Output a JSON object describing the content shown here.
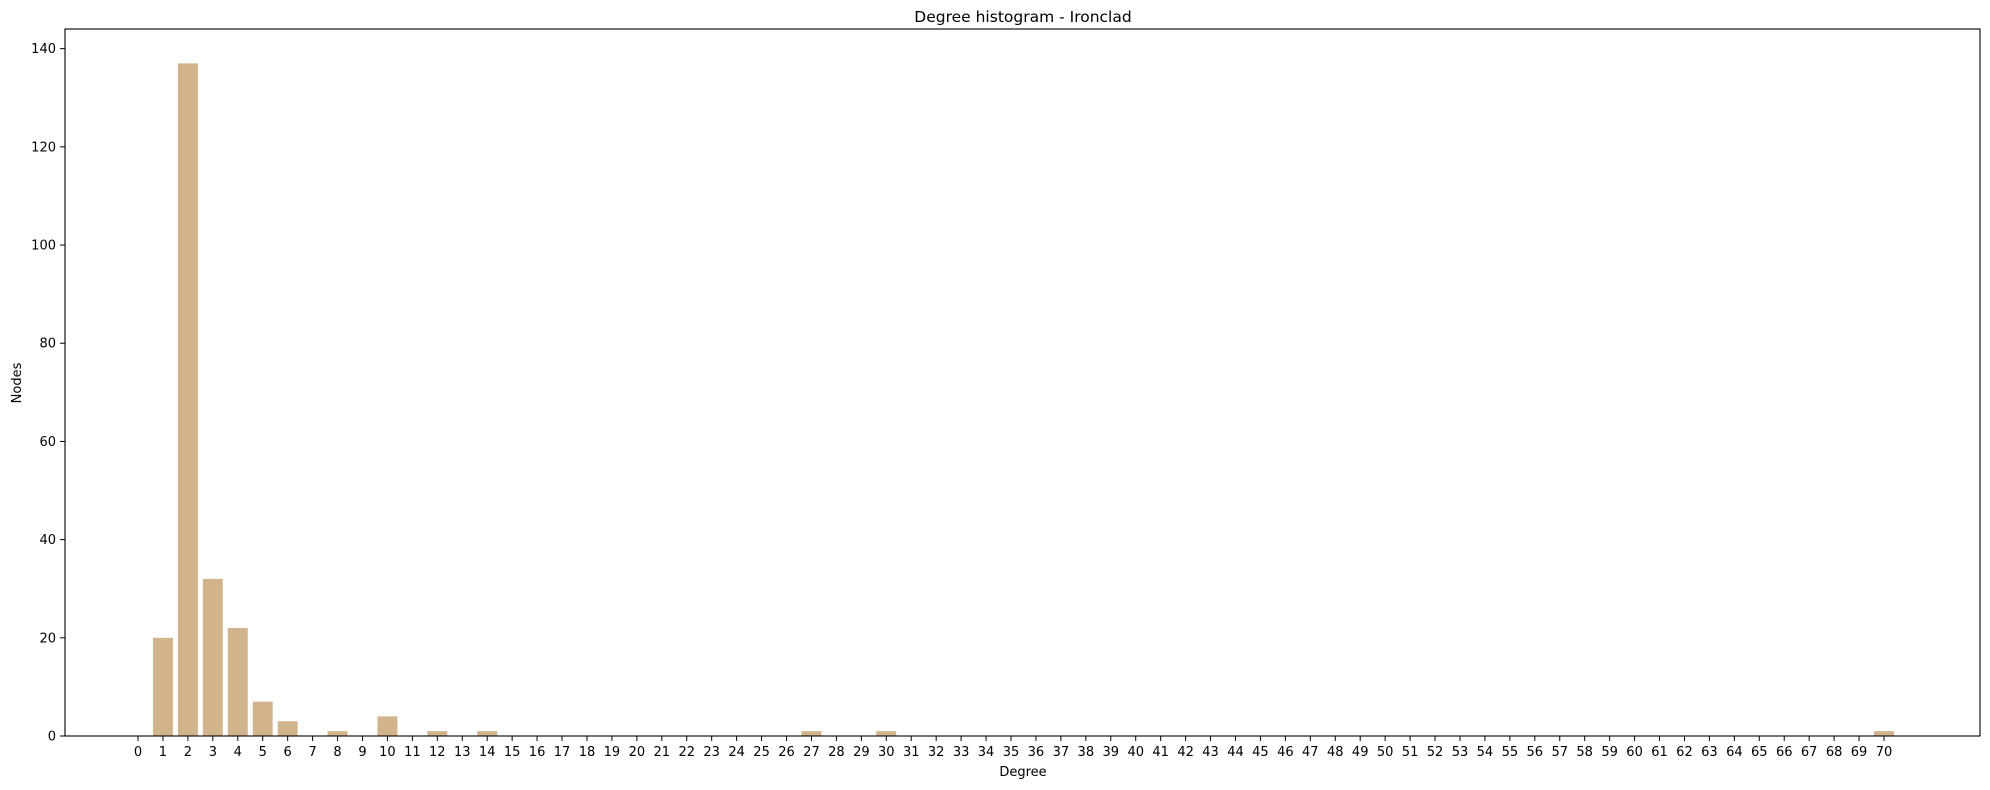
{
  "chart_data": {
    "type": "bar",
    "title": "Degree histogram - Ironclad",
    "xlabel": "Degree",
    "ylabel": "Nodes",
    "ylim": [
      0,
      144
    ],
    "y_ticks": [
      0,
      20,
      40,
      60,
      80,
      100,
      120,
      140
    ],
    "bar_color": "#d2b48c",
    "grid": false,
    "categories": [
      "0",
      "1",
      "2",
      "3",
      "4",
      "5",
      "6",
      "7",
      "8",
      "9",
      "10",
      "11",
      "12",
      "13",
      "14",
      "15",
      "16",
      "17",
      "18",
      "19",
      "20",
      "21",
      "22",
      "23",
      "24",
      "25",
      "26",
      "27",
      "28",
      "29",
      "30",
      "31",
      "32",
      "33",
      "34",
      "35",
      "36",
      "37",
      "38",
      "39",
      "40",
      "41",
      "42",
      "43",
      "44",
      "45",
      "46",
      "47",
      "48",
      "49",
      "50",
      "51",
      "52",
      "53",
      "54",
      "55",
      "56",
      "57",
      "58",
      "59",
      "60",
      "61",
      "62",
      "63",
      "64",
      "65",
      "66",
      "67",
      "68",
      "69",
      "70"
    ],
    "values": [
      0,
      20,
      137,
      32,
      22,
      7,
      3,
      0,
      1,
      0,
      4,
      0,
      1,
      0,
      1,
      0,
      0,
      0,
      0,
      0,
      0,
      0,
      0,
      0,
      0,
      0,
      0,
      1,
      0,
      0,
      1,
      0,
      0,
      0,
      0,
      0,
      0,
      0,
      0,
      0,
      0,
      0,
      0,
      0,
      0,
      0,
      0,
      0,
      0,
      0,
      0,
      0,
      0,
      0,
      0,
      0,
      0,
      0,
      0,
      0,
      0,
      0,
      0,
      0,
      0,
      0,
      0,
      0,
      0,
      0,
      1
    ]
  }
}
